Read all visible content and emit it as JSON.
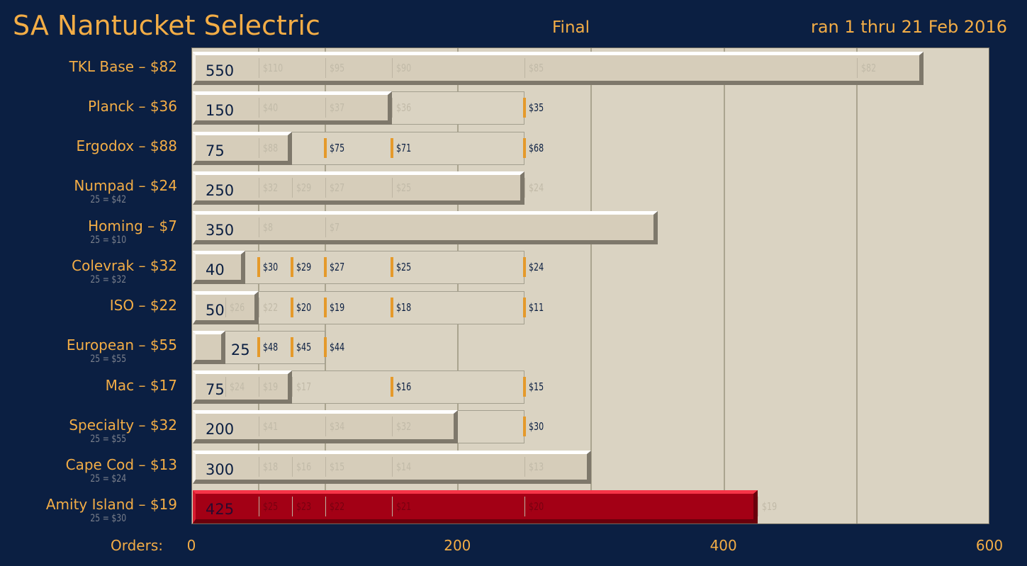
{
  "header": {
    "title": "SA Nantucket Selectric",
    "status": "Final",
    "date_range": "ran 1 thru 21 Feb 2016"
  },
  "colors": {
    "background": "#0b1f42",
    "accent_text": "#f3ad46",
    "plot_background": "#dad3c2",
    "bar": "#d6cdba",
    "highlight_bar": "#a30015",
    "reached_tier_marker": "#e59a2b"
  },
  "chart_data": {
    "type": "bar",
    "orientation": "horizontal",
    "title": "SA Nantucket Selectric",
    "xlabel": "Orders:",
    "xlim": [
      0,
      600
    ],
    "xticks": [
      0,
      200,
      400,
      600
    ],
    "grid": "vertical",
    "highlight": "Amity Island – $19",
    "rows": [
      {
        "label": "TKL Base – $82",
        "sublabel": "",
        "orders": 550,
        "tier_end": 550,
        "price_breaks": [
          {
            "at": 50,
            "price": "$110",
            "reached": false
          },
          {
            "at": 100,
            "price": "$95",
            "reached": false
          },
          {
            "at": 150,
            "price": "$90",
            "reached": false
          },
          {
            "at": 250,
            "price": "$85",
            "reached": false
          },
          {
            "at": 500,
            "price": "$82",
            "reached": false
          }
        ]
      },
      {
        "label": "Planck – $36",
        "sublabel": "",
        "orders": 150,
        "tier_end": 250,
        "price_breaks": [
          {
            "at": 50,
            "price": "$40",
            "reached": false
          },
          {
            "at": 100,
            "price": "$37",
            "reached": false
          },
          {
            "at": 150,
            "price": "$36",
            "reached": false
          },
          {
            "at": 250,
            "price": "$35",
            "reached": true
          }
        ]
      },
      {
        "label": "Ergodox – $88",
        "sublabel": "",
        "orders": 75,
        "tier_end": 250,
        "price_breaks": [
          {
            "at": 50,
            "price": "$88",
            "reached": false
          },
          {
            "at": 100,
            "price": "$75",
            "reached": true
          },
          {
            "at": 150,
            "price": "$71",
            "reached": true
          },
          {
            "at": 250,
            "price": "$68",
            "reached": true
          }
        ]
      },
      {
        "label": "Numpad – $24",
        "sublabel": "25 = $42",
        "orders": 250,
        "tier_end": 250,
        "price_breaks": [
          {
            "at": 50,
            "price": "$32",
            "reached": false
          },
          {
            "at": 75,
            "price": "$29",
            "reached": false
          },
          {
            "at": 100,
            "price": "$27",
            "reached": false
          },
          {
            "at": 150,
            "price": "$25",
            "reached": false
          },
          {
            "at": 250,
            "price": "$24",
            "reached": false
          }
        ]
      },
      {
        "label": "Homing – $7",
        "sublabel": "25 = $10",
        "orders": 350,
        "tier_end": 350,
        "price_breaks": [
          {
            "at": 50,
            "price": "$8",
            "reached": false
          },
          {
            "at": 100,
            "price": "$7",
            "reached": false
          }
        ]
      },
      {
        "label": "Colevrak – $32",
        "sublabel": "25 = $32",
        "orders": 40,
        "tier_end": 250,
        "price_breaks": [
          {
            "at": 50,
            "price": "$30",
            "reached": true
          },
          {
            "at": 75,
            "price": "$29",
            "reached": true
          },
          {
            "at": 100,
            "price": "$27",
            "reached": true
          },
          {
            "at": 150,
            "price": "$25",
            "reached": true
          },
          {
            "at": 250,
            "price": "$24",
            "reached": true
          }
        ]
      },
      {
        "label": "ISO – $22",
        "sublabel": "",
        "orders": 50,
        "tier_end": 250,
        "price_breaks": [
          {
            "at": 25,
            "price": "$26",
            "reached": false
          },
          {
            "at": 50,
            "price": "$22",
            "reached": false
          },
          {
            "at": 75,
            "price": "$20",
            "reached": true
          },
          {
            "at": 100,
            "price": "$19",
            "reached": true
          },
          {
            "at": 150,
            "price": "$18",
            "reached": true
          },
          {
            "at": 250,
            "price": "$11",
            "reached": true
          }
        ]
      },
      {
        "label": "European – $55",
        "sublabel": "25 = $55",
        "orders": 25,
        "tier_end": 100,
        "price_breaks": [
          {
            "at": 50,
            "price": "$48",
            "reached": true
          },
          {
            "at": 75,
            "price": "$45",
            "reached": true
          },
          {
            "at": 100,
            "price": "$44",
            "reached": true
          }
        ]
      },
      {
        "label": "Mac – $17",
        "sublabel": "",
        "orders": 75,
        "tier_end": 250,
        "price_breaks": [
          {
            "at": 25,
            "price": "$24",
            "reached": false
          },
          {
            "at": 50,
            "price": "$19",
            "reached": false
          },
          {
            "at": 75,
            "price": "$17",
            "reached": false
          },
          {
            "at": 150,
            "price": "$16",
            "reached": true
          },
          {
            "at": 250,
            "price": "$15",
            "reached": true
          }
        ]
      },
      {
        "label": "Specialty – $32",
        "sublabel": "25 = $55",
        "orders": 200,
        "tier_end": 250,
        "price_breaks": [
          {
            "at": 50,
            "price": "$41",
            "reached": false
          },
          {
            "at": 100,
            "price": "$34",
            "reached": false
          },
          {
            "at": 150,
            "price": "$32",
            "reached": false
          },
          {
            "at": 250,
            "price": "$30",
            "reached": true
          }
        ]
      },
      {
        "label": "Cape Cod – $13",
        "sublabel": "25 = $24",
        "orders": 300,
        "tier_end": 300,
        "price_breaks": [
          {
            "at": 50,
            "price": "$18",
            "reached": false
          },
          {
            "at": 75,
            "price": "$16",
            "reached": false
          },
          {
            "at": 100,
            "price": "$15",
            "reached": false
          },
          {
            "at": 150,
            "price": "$14",
            "reached": false
          },
          {
            "at": 250,
            "price": "$13",
            "reached": false
          }
        ]
      },
      {
        "label": "Amity Island – $19",
        "sublabel": "25 = $30",
        "orders": 425,
        "tier_end": 425,
        "price_breaks": [
          {
            "at": 50,
            "price": "$25",
            "reached": false
          },
          {
            "at": 75,
            "price": "$23",
            "reached": false
          },
          {
            "at": 100,
            "price": "$22",
            "reached": false
          },
          {
            "at": 150,
            "price": "$21",
            "reached": false
          },
          {
            "at": 250,
            "price": "$20",
            "reached": false
          },
          {
            "at": 425,
            "price": "$19",
            "reached": false
          }
        ]
      }
    ]
  }
}
